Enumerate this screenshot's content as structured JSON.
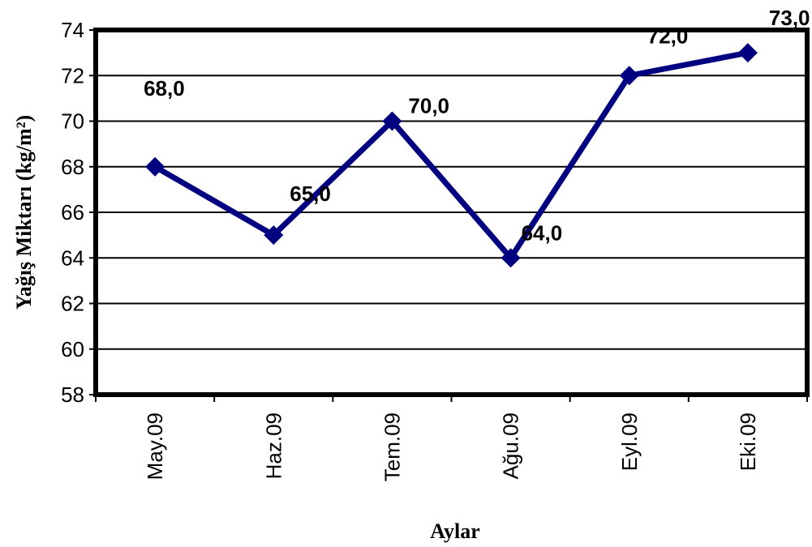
{
  "chart_data": {
    "type": "line",
    "title": "",
    "xlabel": "Aylar",
    "ylabel": "Yağış Miktarı (kg/m²)",
    "categories": [
      "May.09",
      "Haz.09",
      "Tem.09",
      "Ağu.09",
      "Eyl.09",
      "Eki.09"
    ],
    "series": [
      {
        "values": [
          68.0,
          65.0,
          70.0,
          64.0,
          72.0,
          73.0
        ],
        "labels": [
          "68,0",
          "65,0",
          "70,0",
          "64,0",
          "72,0",
          "73,0"
        ],
        "color": "#000080",
        "marker": "diamond"
      }
    ],
    "ylim": [
      58,
      74
    ],
    "yticks": [
      "58",
      "60",
      "62",
      "64",
      "66",
      "68",
      "70",
      "72",
      "74"
    ],
    "grid": true,
    "legend": "none"
  }
}
